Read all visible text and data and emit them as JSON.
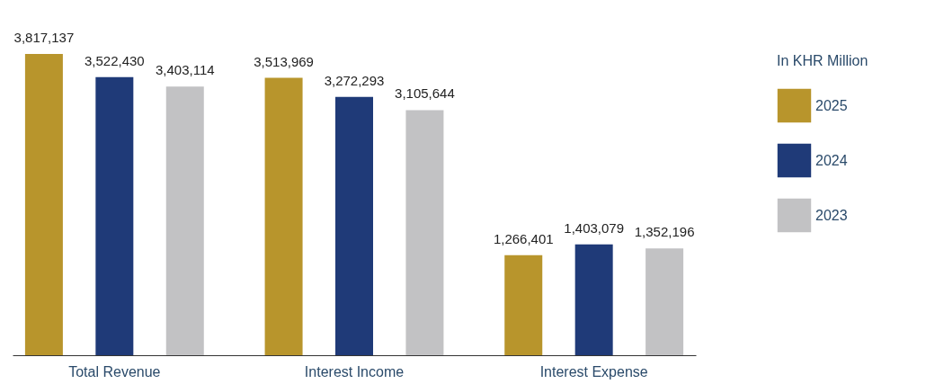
{
  "chart_data": {
    "type": "bar",
    "categories": [
      "Total Revenue",
      "Interest Income",
      "Interest Expense"
    ],
    "series": [
      {
        "name": "2025",
        "color": "#b8952c",
        "values": [
          3817137,
          3513969,
          1266401
        ],
        "value_labels": [
          "3,817,137",
          "3,513,969",
          "1,266,401"
        ]
      },
      {
        "name": "2024",
        "color": "#1f3a78",
        "values": [
          3522430,
          3272293,
          1403079
        ],
        "value_labels": [
          "3,522,430",
          "3,272,293",
          "1,403,079"
        ]
      },
      {
        "name": "2023",
        "color": "#c2c2c4",
        "values": [
          3403114,
          3105644,
          1352196
        ],
        "value_labels": [
          "3,403,114",
          "3,105,644",
          "1,352,196"
        ]
      }
    ],
    "legend": "right",
    "legend_title": "In KHR Million"
  }
}
